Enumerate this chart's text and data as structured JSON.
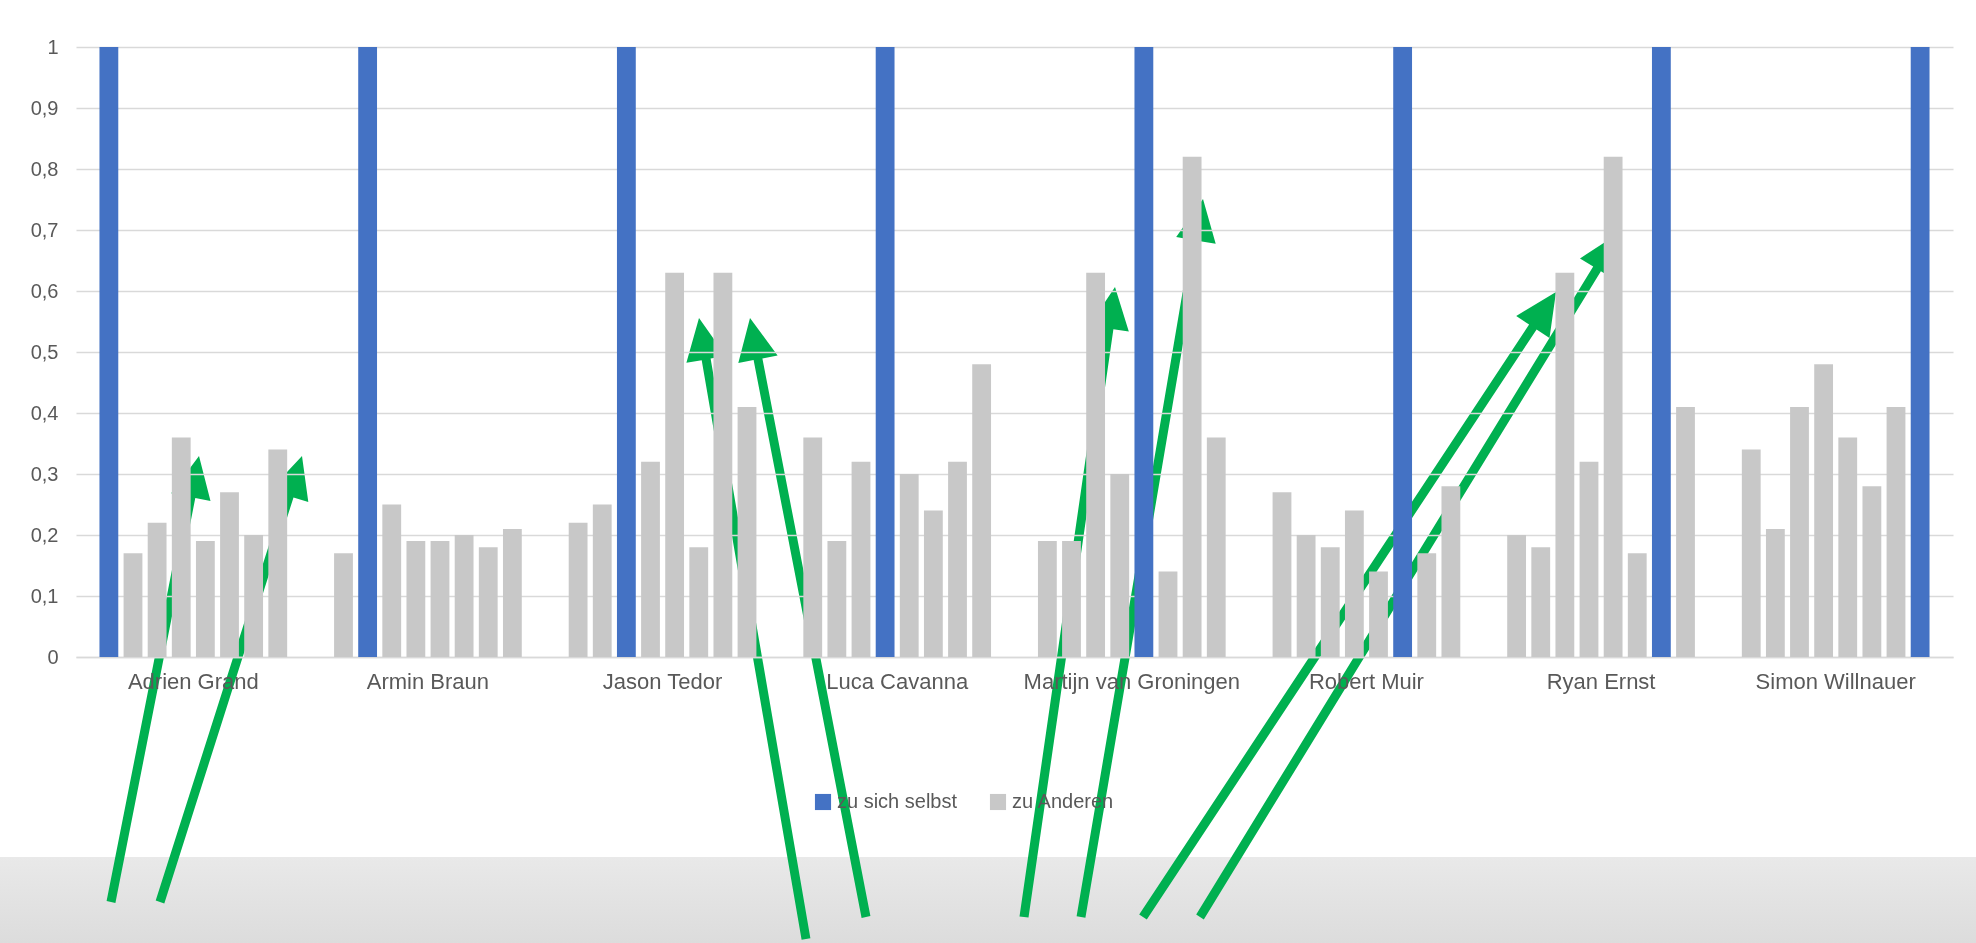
{
  "chart_data": {
    "type": "bar",
    "categories": [
      "Adrien Grand",
      "Armin Braun",
      "Jason Tedor",
      "Luca Cavanna",
      "Martijn van Groningen",
      "Robert Muir",
      "Ryan Ernst",
      "Simon Willnauer"
    ],
    "ylim": [
      0,
      1
    ],
    "yticks": [
      {
        "value": 0,
        "label": "0"
      },
      {
        "value": 0.1,
        "label": "0,1"
      },
      {
        "value": 0.2,
        "label": "0,2"
      },
      {
        "value": 0.3,
        "label": "0,3"
      },
      {
        "value": 0.4,
        "label": "0,4"
      },
      {
        "value": 0.5,
        "label": "0,5"
      },
      {
        "value": 0.6,
        "label": "0,6"
      },
      {
        "value": 0.7,
        "label": "0,7"
      },
      {
        "value": 0.8,
        "label": "0,8"
      },
      {
        "value": 0.9,
        "label": "0,9"
      },
      {
        "value": 1,
        "label": "1"
      }
    ],
    "grid": "y",
    "legend": "bottom",
    "series": [
      {
        "values": [
          1,
          0.17,
          0.22,
          0.36,
          0.19,
          0.27,
          0.2,
          0.34
        ],
        "colors": [
          "#4472c4",
          "#c8c8c8",
          "#c8c8c8",
          "#c8c8c8",
          "#c8c8c8",
          "#c8c8c8",
          "#c8c8c8",
          "#c8c8c8"
        ]
      },
      {
        "values": [
          0.17,
          1,
          0.25,
          0.19,
          0.19,
          0.2,
          0.18,
          0.21
        ],
        "colors": [
          "#c8c8c8",
          "#4472c4",
          "#c8c8c8",
          "#c8c8c8",
          "#c8c8c8",
          "#c8c8c8",
          "#c8c8c8",
          "#c8c8c8"
        ]
      },
      {
        "values": [
          0.22,
          0.25,
          1,
          0.32,
          0.63,
          0.18,
          0.63,
          0.41
        ],
        "colors": [
          "#c8c8c8",
          "#c8c8c8",
          "#4472c4",
          "#c8c8c8",
          "#c8c8c8",
          "#c8c8c8",
          "#c8c8c8",
          "#c8c8c8"
        ]
      },
      {
        "values": [
          0.36,
          0.19,
          0.32,
          1,
          0.3,
          0.24,
          0.32,
          0.48
        ],
        "colors": [
          "#c8c8c8",
          "#c8c8c8",
          "#c8c8c8",
          "#4472c4",
          "#c8c8c8",
          "#c8c8c8",
          "#c8c8c8",
          "#c8c8c8"
        ]
      },
      {
        "values": [
          0.19,
          0.19,
          0.63,
          0.3,
          1,
          0.14,
          0.82,
          0.36
        ],
        "colors": [
          "#c8c8c8",
          "#c8c8c8",
          "#c8c8c8",
          "#c8c8c8",
          "#4472c4",
          "#c8c8c8",
          "#c8c8c8",
          "#c8c8c8"
        ]
      },
      {
        "values": [
          0.27,
          0.2,
          0.18,
          0.24,
          0.14,
          1,
          0.17,
          0.28
        ],
        "colors": [
          "#c8c8c8",
          "#c8c8c8",
          "#c8c8c8",
          "#c8c8c8",
          "#c8c8c8",
          "#4472c4",
          "#c8c8c8",
          "#c8c8c8"
        ]
      },
      {
        "values": [
          0.2,
          0.18,
          0.63,
          0.32,
          0.82,
          0.17,
          1,
          0.41
        ],
        "colors": [
          "#c8c8c8",
          "#c8c8c8",
          "#c8c8c8",
          "#c8c8c8",
          "#c8c8c8",
          "#c8c8c8",
          "#4472c4",
          "#c8c8c8"
        ]
      },
      {
        "values": [
          0.34,
          0.21,
          0.41,
          0.48,
          0.36,
          0.28,
          0.41,
          1
        ],
        "colors": [
          "#c8c8c8",
          "#c8c8c8",
          "#c8c8c8",
          "#c8c8c8",
          "#c8c8c8",
          "#c8c8c8",
          "#c8c8c8",
          "#4472c4"
        ]
      },
      {
        "name": "zu sich selbst",
        "color": "#4472c4",
        "values": [
          null,
          null,
          null,
          null,
          null,
          null,
          null,
          null
        ]
      },
      {
        "name": "zu Anderen",
        "color": "#c8c8c8",
        "values": [
          null,
          null,
          null,
          null,
          null,
          null,
          null,
          null
        ]
      }
    ]
  }
}
